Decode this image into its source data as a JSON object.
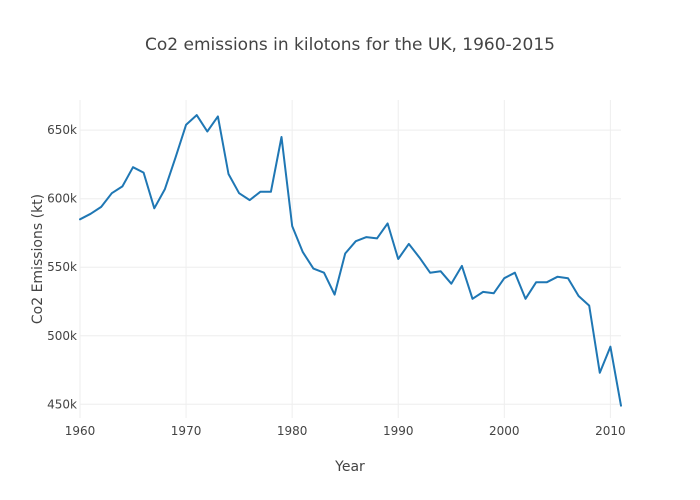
{
  "chart_data": {
    "type": "line",
    "title": "Co2 emissions in kilotons for the UK, 1960-2015",
    "xlabel": "Year",
    "ylabel": "Co2 Emissions (kt)",
    "xlim": [
      1960,
      2011
    ],
    "ylim": [
      440000,
      672000
    ],
    "x_ticks": [
      1960,
      1970,
      1980,
      1990,
      2000,
      2010
    ],
    "x_tick_labels": [
      "1960",
      "1970",
      "1980",
      "1990",
      "2000",
      "2010"
    ],
    "y_ticks": [
      450000,
      500000,
      550000,
      600000,
      650000
    ],
    "y_tick_labels": [
      "450k",
      "500k",
      "550k",
      "600k",
      "650k"
    ],
    "grid": true,
    "legend": "none",
    "series": [
      {
        "color": "#1f77b4",
        "x": [
          1960,
          1961,
          1962,
          1963,
          1964,
          1965,
          1966,
          1967,
          1968,
          1969,
          1970,
          1971,
          1972,
          1973,
          1974,
          1975,
          1976,
          1977,
          1978,
          1979,
          1980,
          1981,
          1982,
          1983,
          1984,
          1985,
          1986,
          1987,
          1988,
          1989,
          1990,
          1991,
          1992,
          1993,
          1994,
          1995,
          1996,
          1997,
          1998,
          1999,
          2000,
          2001,
          2002,
          2003,
          2004,
          2005,
          2006,
          2007,
          2008,
          2009,
          2010,
          2011
        ],
        "y": [
          585000,
          589000,
          594000,
          604000,
          609000,
          623000,
          619000,
          593000,
          607000,
          630000,
          654000,
          661000,
          649000,
          660000,
          618000,
          604000,
          599000,
          605000,
          605000,
          645000,
          580000,
          561000,
          549000,
          546000,
          530000,
          560000,
          569000,
          572000,
          571000,
          582000,
          556000,
          567000,
          557000,
          546000,
          547000,
          538000,
          551000,
          527000,
          532000,
          531000,
          542000,
          546000,
          527000,
          539000,
          539000,
          543000,
          542000,
          529000,
          522000,
          473000,
          492000,
          449000
        ]
      }
    ]
  }
}
